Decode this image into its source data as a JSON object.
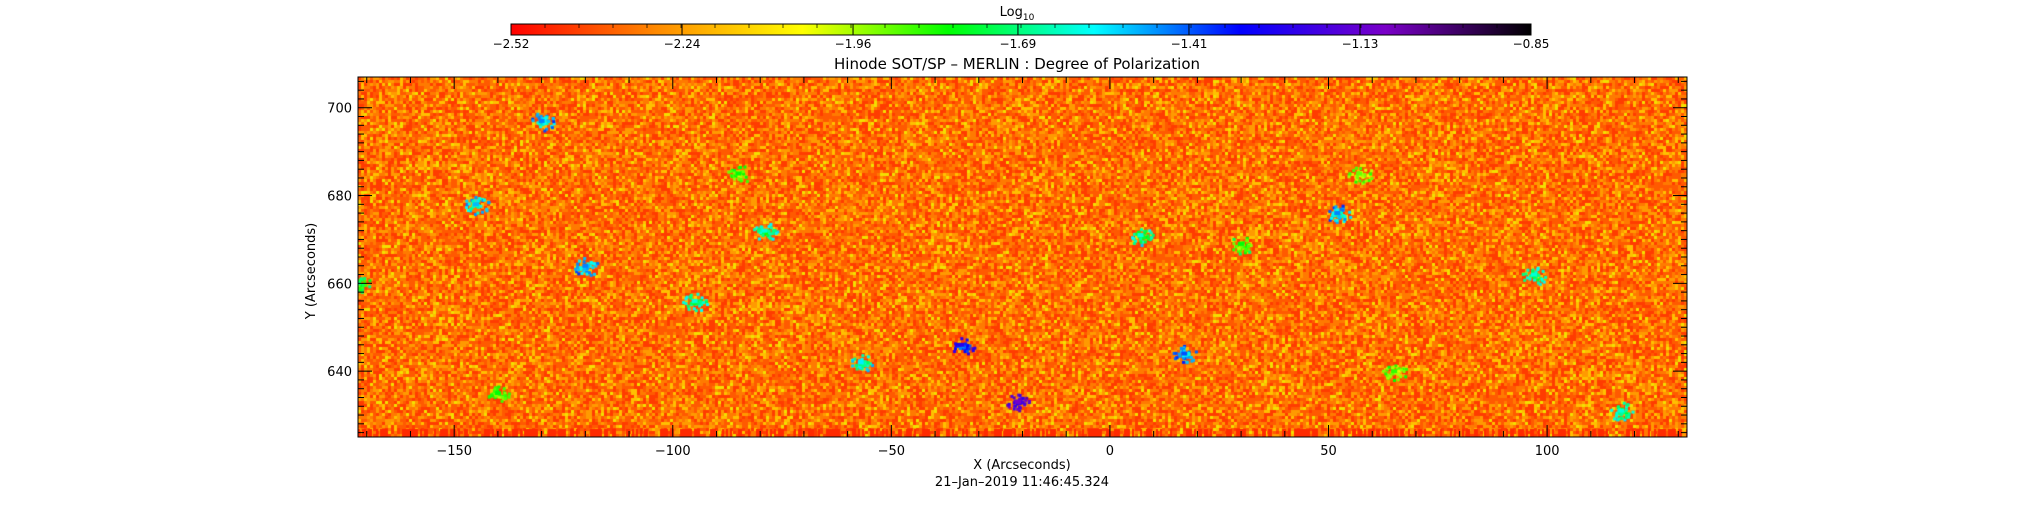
{
  "chart_data": {
    "type": "heatmap",
    "title": "Hinode SOT/SP – MERLIN : Degree of Polarization",
    "xlabel": "X (Arcseconds)",
    "ylabel": "Y (Arcseconds)",
    "xlim": [
      -172,
      132
    ],
    "ylim": [
      625,
      707
    ],
    "xticks": [
      -150,
      -100,
      -50,
      0,
      50,
      100
    ],
    "xtick_labels": [
      "−150",
      "−100",
      "−50",
      "0",
      "50",
      "100"
    ],
    "yticks": [
      640,
      660,
      680,
      700
    ],
    "ytick_labels": [
      "640",
      "660",
      "680",
      "700"
    ],
    "colorbar": {
      "label_main": "Log",
      "label_sub": "10",
      "range": [
        -2.52,
        -0.85
      ],
      "ticks": [
        -2.52,
        -2.24,
        -1.96,
        -1.69,
        -1.41,
        -1.13,
        -0.85
      ],
      "tick_labels": [
        "−2.52",
        "−2.24",
        "−1.96",
        "−1.69",
        "−1.41",
        "−1.13",
        "−0.85"
      ],
      "colors": [
        "#ff0000",
        "#ff8a00",
        "#ffff00",
        "#00ff00",
        "#00ffff",
        "#0000ff",
        "#7a00c8",
        "#000000"
      ]
    },
    "background_colors": [
      "#ff3c00",
      "#ff5a00",
      "#ff7a00",
      "#ff9a00",
      "#ffc000",
      "#f2e000"
    ],
    "features": [
      {
        "x": -130,
        "y": 697,
        "value": -1.45
      },
      {
        "x": -85,
        "y": 685,
        "value": -1.8
      },
      {
        "x": -145,
        "y": 678,
        "value": -1.5
      },
      {
        "x": -172,
        "y": 660,
        "value": -1.7
      },
      {
        "x": -120,
        "y": 664,
        "value": -1.45
      },
      {
        "x": 7,
        "y": 671,
        "value": -1.6
      },
      {
        "x": 52,
        "y": 676,
        "value": -1.45
      },
      {
        "x": 57,
        "y": 685,
        "value": -1.9
      },
      {
        "x": 97,
        "y": 662,
        "value": -1.6
      },
      {
        "x": -57,
        "y": 642,
        "value": -1.55
      },
      {
        "x": -34,
        "y": 646,
        "value": -1.25
      },
      {
        "x": -21,
        "y": 633,
        "value": -1.1
      },
      {
        "x": 17,
        "y": 644,
        "value": -1.4
      },
      {
        "x": -140,
        "y": 635,
        "value": -1.8
      },
      {
        "x": -79,
        "y": 672,
        "value": -1.6
      },
      {
        "x": 117,
        "y": 631,
        "value": -1.6
      },
      {
        "x": -95,
        "y": 656,
        "value": -1.6
      },
      {
        "x": 30,
        "y": 669,
        "value": -1.8
      },
      {
        "x": 65,
        "y": 640,
        "value": -1.85
      }
    ]
  },
  "timestamp": "21–Jan–2019 11:46:45.324"
}
